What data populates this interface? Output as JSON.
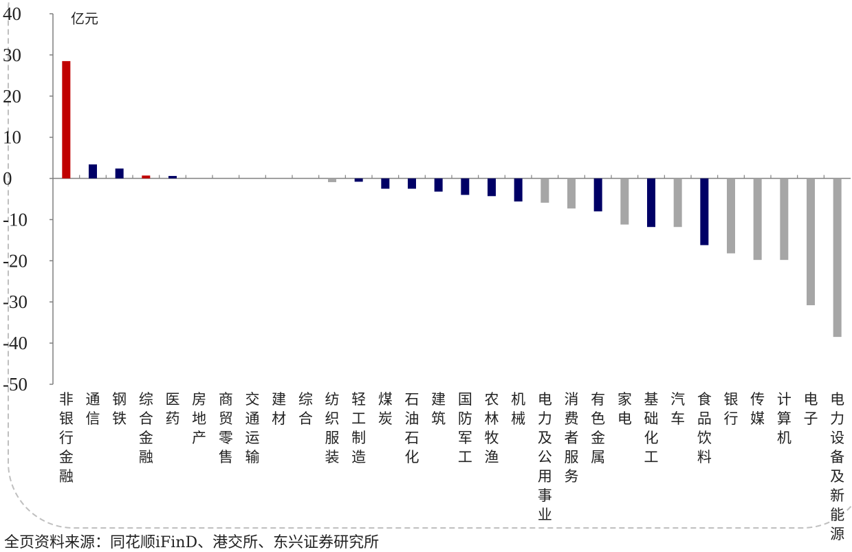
{
  "chart_data": {
    "type": "bar",
    "unit": "亿元",
    "ylim": [
      -50,
      40
    ],
    "yticks": [
      40,
      30,
      20,
      10,
      0,
      -10,
      -20,
      -30,
      -40,
      -50
    ],
    "grid": false,
    "categories": [
      "非银行金融",
      "通信",
      "钢铁",
      "综合金融",
      "医药",
      "房地产",
      "商贸零售",
      "交通运输",
      "建材",
      "综合",
      "纺织服装",
      "轻工制造",
      "煤炭",
      "石油石化",
      "建筑",
      "国防军工",
      "农林牧渔",
      "机械",
      "电力及公用事业",
      "消费者服务",
      "有色金属",
      "家电",
      "基础化工",
      "汽车",
      "食品饮料",
      "银行",
      "传媒",
      "计算机",
      "电子",
      "电力设备及新能源"
    ],
    "values": [
      28.5,
      3.4,
      2.4,
      0.7,
      0.6,
      0,
      0,
      0,
      0,
      0,
      -0.9,
      -0.8,
      -2.5,
      -2.5,
      -3.2,
      -4.0,
      -4.3,
      -5.6,
      -5.9,
      -7.3,
      -8.0,
      -11.2,
      -11.8,
      -11.8,
      -16.2,
      -18.2,
      -19.8,
      -19.8,
      -30.8,
      -38.5
    ],
    "bar_colors": [
      "#c00000",
      "#000066",
      "#000066",
      "#c00000",
      "#000066",
      "#000066",
      "#000066",
      "#000066",
      "#000066",
      "#000066",
      "#a6a6a6",
      "#000066",
      "#000066",
      "#000066",
      "#000066",
      "#000066",
      "#000066",
      "#000066",
      "#a6a6a6",
      "#a6a6a6",
      "#000066",
      "#a6a6a6",
      "#000066",
      "#a6a6a6",
      "#000066",
      "#a6a6a6",
      "#a6a6a6",
      "#a6a6a6",
      "#a6a6a6",
      "#a6a6a6"
    ]
  },
  "source_note": "全页资料来源：同花顺iFinD、港交所、东兴证券研究所"
}
